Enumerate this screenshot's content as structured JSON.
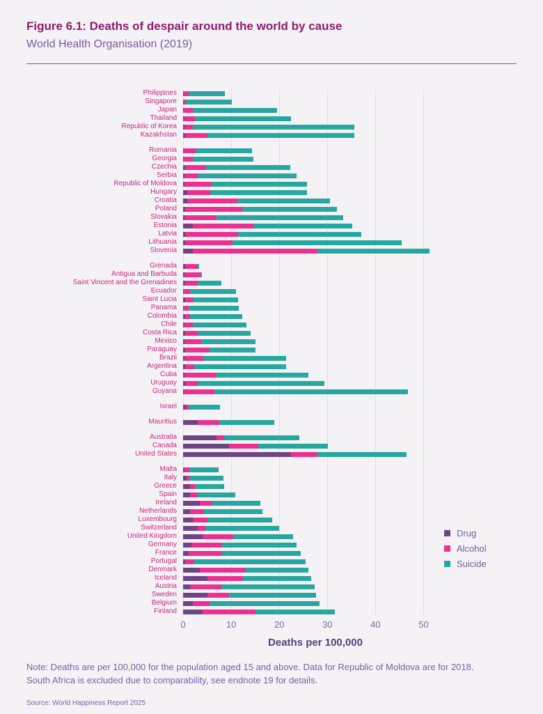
{
  "header": {
    "title": "Figure 6.1: Deaths of despair around the world by cause",
    "subtitle": "World Health Organisation (2019)"
  },
  "chart_data": {
    "type": "bar",
    "orientation": "horizontal",
    "stacked": true,
    "series_names": [
      "Drug",
      "Alcohol",
      "Suicide"
    ],
    "colors": {
      "drug": "#6e4486",
      "alcohol": "#ea3190",
      "suicide": "#28a7a1"
    },
    "xlabel": "Deaths per 100,000",
    "xlim": [
      0,
      55
    ],
    "xticks": [
      0,
      10,
      20,
      30,
      40,
      50
    ],
    "grid": "vertical",
    "legend_position": "right",
    "groups": [
      {
        "countries": [
          {
            "name": "Philippines",
            "drug": 0.2,
            "alcohol": 1.0,
            "suicide": 7.5
          },
          {
            "name": "Singapore",
            "drug": 0.1,
            "alcohol": 0.5,
            "suicide": 9.5
          },
          {
            "name": "Japan",
            "drug": 0.2,
            "alcohol": 1.8,
            "suicide": 17.5
          },
          {
            "name": "Thailand",
            "drug": 0.3,
            "alcohol": 2.2,
            "suicide": 20.0
          },
          {
            "name": "Republic of Korea",
            "drug": 0.3,
            "alcohol": 1.8,
            "suicide": 33.5
          },
          {
            "name": "Kazakhstan",
            "drug": 0.4,
            "alcohol": 4.6,
            "suicide": 30.6
          }
        ]
      },
      {
        "countries": [
          {
            "name": "Romania",
            "drug": 0.2,
            "alcohol": 2.6,
            "suicide": 11.5
          },
          {
            "name": "Georgia",
            "drug": 0.2,
            "alcohol": 1.8,
            "suicide": 12.6
          },
          {
            "name": "Czechia",
            "drug": 0.4,
            "alcohol": 4.4,
            "suicide": 17.5
          },
          {
            "name": "Serbia",
            "drug": 0.3,
            "alcohol": 2.7,
            "suicide": 20.6
          },
          {
            "name": "Republic of Moldova",
            "drug": 0.3,
            "alcohol": 5.7,
            "suicide": 19.7
          },
          {
            "name": "Hungary",
            "drug": 0.8,
            "alcohol": 4.9,
            "suicide": 20.0
          },
          {
            "name": "Croatia",
            "drug": 0.8,
            "alcohol": 10.7,
            "suicide": 19.0
          },
          {
            "name": "Poland",
            "drug": 0.4,
            "alcohol": 11.9,
            "suicide": 19.7
          },
          {
            "name": "Slovakia",
            "drug": 0.3,
            "alcohol": 6.7,
            "suicide": 26.3
          },
          {
            "name": "Estonia",
            "drug": 2.0,
            "alcohol": 12.8,
            "suicide": 20.4
          },
          {
            "name": "Latvia",
            "drug": 0.5,
            "alcohol": 11.0,
            "suicide": 25.5
          },
          {
            "name": "Lithuania",
            "drug": 0.4,
            "alcohol": 9.9,
            "suicide": 35.1
          },
          {
            "name": "Slovenia",
            "drug": 2.0,
            "alcohol": 26.0,
            "suicide": 23.2
          }
        ]
      },
      {
        "countries": [
          {
            "name": "Grenada",
            "drug": 0.5,
            "alcohol": 2.5,
            "suicide": 0.3
          },
          {
            "name": "Antigua and Barbuda",
            "drug": 0.3,
            "alcohol": 3.3,
            "suicide": 0.3
          },
          {
            "name": "Saint Vincent and the Grenadines",
            "drug": 0.5,
            "alcohol": 2.5,
            "suicide": 5.0
          },
          {
            "name": "Ecuador",
            "drug": 0.2,
            "alcohol": 1.3,
            "suicide": 9.5
          },
          {
            "name": "Saint Lucia",
            "drug": 0.5,
            "alcohol": 1.5,
            "suicide": 9.4
          },
          {
            "name": "Panama",
            "drug": 0.2,
            "alcohol": 1.0,
            "suicide": 10.4
          },
          {
            "name": "Colombia",
            "drug": 0.4,
            "alcohol": 1.1,
            "suicide": 10.8
          },
          {
            "name": "Chile",
            "drug": 0.3,
            "alcohol": 1.7,
            "suicide": 11.2
          },
          {
            "name": "Costa Rica",
            "drug": 0.5,
            "alcohol": 2.5,
            "suicide": 11.0
          },
          {
            "name": "Mexico",
            "drug": 0.3,
            "alcohol": 3.4,
            "suicide": 11.3
          },
          {
            "name": "Paraguay",
            "drug": 0.5,
            "alcohol": 4.8,
            "suicide": 9.7
          },
          {
            "name": "Brazil",
            "drug": 0.3,
            "alcohol": 3.9,
            "suicide": 17.2
          },
          {
            "name": "Argentina",
            "drug": 0.5,
            "alcohol": 1.8,
            "suicide": 19.1
          },
          {
            "name": "Cuba",
            "drug": 0.3,
            "alcohol": 6.7,
            "suicide": 19.0
          },
          {
            "name": "Uruguay",
            "drug": 0.5,
            "alcohol": 2.5,
            "suicide": 26.4
          },
          {
            "name": "Guyana",
            "drug": 0.2,
            "alcohol": 6.3,
            "suicide": 40.3
          }
        ]
      },
      {
        "countries": [
          {
            "name": "Israel",
            "drug": 0.6,
            "alcohol": 0.6,
            "suicide": 6.5
          }
        ]
      },
      {
        "countries": [
          {
            "name": "Mauritius",
            "drug": 3.0,
            "alcohol": 4.5,
            "suicide": 11.5
          }
        ]
      },
      {
        "countries": [
          {
            "name": "Australia",
            "drug": 7.0,
            "alcohol": 1.5,
            "suicide": 15.7
          },
          {
            "name": "Canada",
            "drug": 9.5,
            "alcohol": 6.2,
            "suicide": 14.4
          },
          {
            "name": "United States",
            "drug": 22.5,
            "alcohol": 5.5,
            "suicide": 18.5
          }
        ]
      },
      {
        "countries": [
          {
            "name": "Malta",
            "drug": 0.3,
            "alcohol": 1.0,
            "suicide": 6.1
          },
          {
            "name": "Italy",
            "drug": 0.7,
            "alcohol": 0.8,
            "suicide": 6.9
          },
          {
            "name": "Greece",
            "drug": 1.5,
            "alcohol": 1.0,
            "suicide": 6.1
          },
          {
            "name": "Spain",
            "drug": 1.5,
            "alcohol": 1.5,
            "suicide": 7.9
          },
          {
            "name": "Ireland",
            "drug": 3.5,
            "alcohol": 2.5,
            "suicide": 10.1
          },
          {
            "name": "Netherlands",
            "drug": 1.5,
            "alcohol": 2.8,
            "suicide": 12.2
          },
          {
            "name": "Luxembourg",
            "drug": 2.0,
            "alcohol": 3.0,
            "suicide": 13.6
          },
          {
            "name": "Switzerland",
            "drug": 3.0,
            "alcohol": 1.7,
            "suicide": 15.3
          },
          {
            "name": "United Kingdom",
            "drug": 4.0,
            "alcohol": 6.4,
            "suicide": 12.5
          },
          {
            "name": "Germany",
            "drug": 1.7,
            "alcohol": 6.4,
            "suicide": 15.5
          },
          {
            "name": "France",
            "drug": 1.2,
            "alcohol": 6.8,
            "suicide": 16.5
          },
          {
            "name": "Portugal",
            "drug": 0.5,
            "alcohol": 1.8,
            "suicide": 23.2
          },
          {
            "name": "Denmark",
            "drug": 3.5,
            "alcohol": 9.5,
            "suicide": 13.1
          },
          {
            "name": "Iceland",
            "drug": 5.0,
            "alcohol": 7.5,
            "suicide": 14.2
          },
          {
            "name": "Austria",
            "drug": 1.5,
            "alcohol": 6.5,
            "suicide": 19.4
          },
          {
            "name": "Sweden",
            "drug": 5.0,
            "alcohol": 4.6,
            "suicide": 18.1
          },
          {
            "name": "Belgium",
            "drug": 2.0,
            "alcohol": 3.5,
            "suicide": 22.8
          },
          {
            "name": "Finland",
            "drug": 4.0,
            "alcohol": 11.0,
            "suicide": 16.6
          }
        ]
      }
    ]
  },
  "legend": {
    "items": [
      {
        "label": "Drug",
        "color": "#6e4486"
      },
      {
        "label": "Alcohol",
        "color": "#ea3190"
      },
      {
        "label": "Suicide",
        "color": "#28a7a1"
      }
    ]
  },
  "footer": {
    "note_line1": "Note: Deaths are per 100,000 for the population aged 15 and above. Data for Republic of Moldova are for 2018.",
    "note_line2": "South Africa is excluded due to comparability, see endnote 19 for details.",
    "source": "Source: World Happiness Report 2025"
  }
}
